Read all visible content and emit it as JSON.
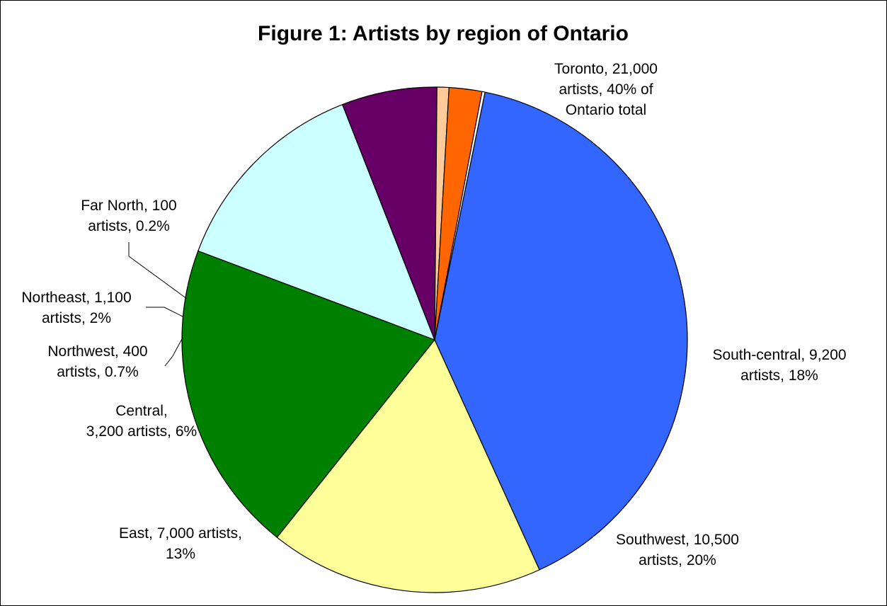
{
  "chart_data": {
    "type": "pie",
    "title": "Figure 1: Artists by region of Ontario",
    "start_angle_deg": 11.5,
    "direction": "clockwise",
    "legend": "none",
    "slices": [
      {
        "name": "Toronto",
        "value": 21000,
        "color": "#3366FF",
        "label_lines": [
          "Toronto, 21,000",
          "artists, 40% of",
          "Ontario total"
        ]
      },
      {
        "name": "South-central",
        "value": 9200,
        "color": "#FFFF99",
        "label_lines": [
          "South-central, 9,200",
          "artists, 18%"
        ]
      },
      {
        "name": "Southwest",
        "value": 10500,
        "color": "#008000",
        "label_lines": [
          "Southwest, 10,500",
          "artists, 20%"
        ]
      },
      {
        "name": "East",
        "value": 7000,
        "color": "#CCFFFF",
        "label_lines": [
          "East, 7,000 artists,",
          "13%"
        ]
      },
      {
        "name": "Central",
        "value": 3200,
        "color": "#660066",
        "label_lines": [
          "Central,",
          "3,200 artists, 6%"
        ]
      },
      {
        "name": "Northwest",
        "value": 400,
        "color": "#FFCC99",
        "label_lines": [
          "Northwest, 400",
          "artists, 0.7%"
        ]
      },
      {
        "name": "Northeast",
        "value": 1100,
        "color": "#FF6600",
        "label_lines": [
          "Northeast, 1,100",
          "artists, 2%"
        ]
      },
      {
        "name": "Far North",
        "value": 100,
        "color": "#FFFFFF",
        "label_lines": [
          "Far North, 100",
          "artists, 0.2%"
        ]
      }
    ]
  }
}
